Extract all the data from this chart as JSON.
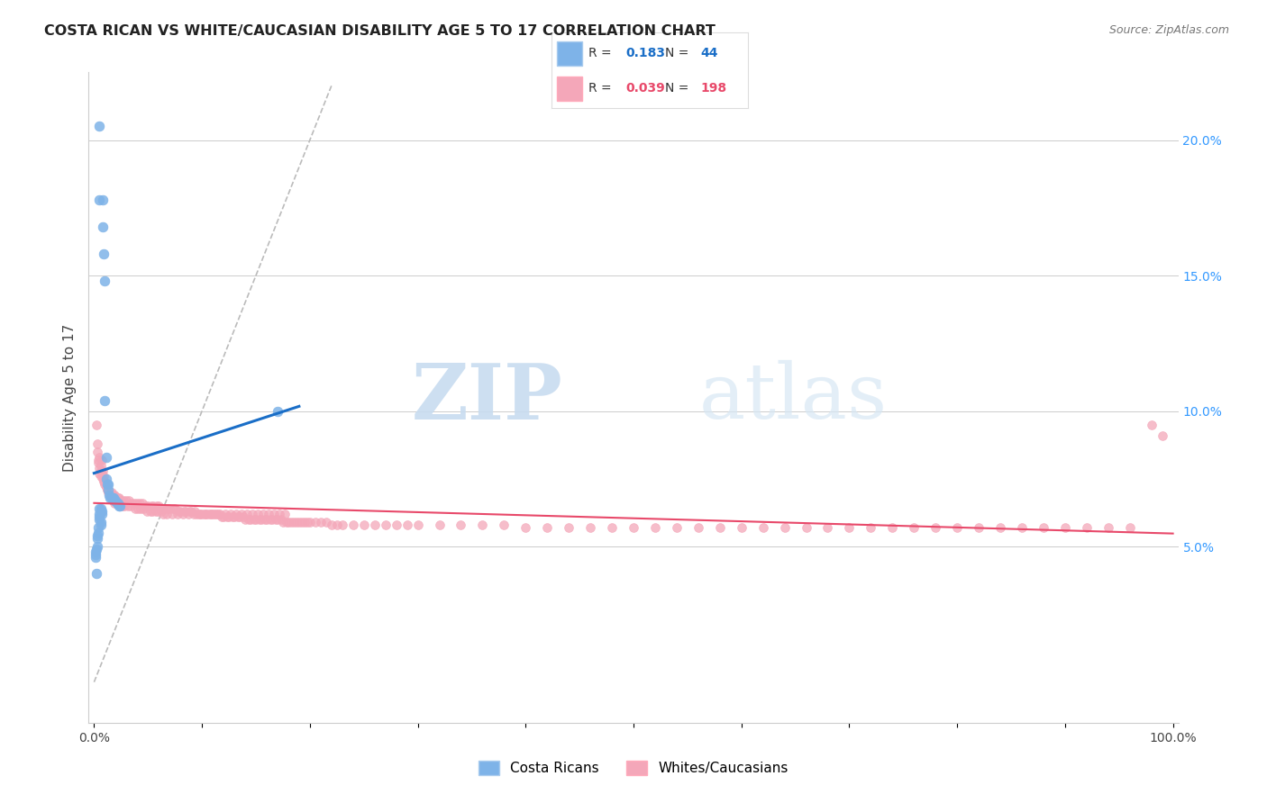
{
  "title": "COSTA RICAN VS WHITE/CAUCASIAN DISABILITY AGE 5 TO 17 CORRELATION CHART",
  "source": "Source: ZipAtlas.com",
  "ylabel": "Disability Age 5 to 17",
  "watermark_zip": "ZIP",
  "watermark_atlas": "atlas",
  "legend_blue_R": "0.183",
  "legend_blue_N": "44",
  "legend_pink_R": "0.039",
  "legend_pink_N": "198",
  "legend_label1": "Costa Ricans",
  "legend_label2": "Whites/Caucasians",
  "xlim": [
    0.0,
    1.0
  ],
  "ylim": [
    0.0,
    0.22
  ],
  "yticks_right": [
    0.05,
    0.1,
    0.15,
    0.2
  ],
  "yticklabels_right": [
    "5.0%",
    "10.0%",
    "15.0%",
    "20.0%"
  ],
  "blue_color": "#7EB3E8",
  "pink_color": "#F4A7B9",
  "blue_line_color": "#1A6EC7",
  "pink_line_color": "#E8496A",
  "diagonal_color": "#BBBBBB",
  "background": "#FFFFFF",
  "blue_points_x": [
    0.005,
    0.005,
    0.008,
    0.008,
    0.009,
    0.01,
    0.01,
    0.011,
    0.011,
    0.012,
    0.013,
    0.013,
    0.014,
    0.015,
    0.016,
    0.017,
    0.018,
    0.019,
    0.02,
    0.021,
    0.022,
    0.023,
    0.024,
    0.005,
    0.006,
    0.006,
    0.007,
    0.007,
    0.005,
    0.005,
    0.005,
    0.006,
    0.006,
    0.004,
    0.004,
    0.003,
    0.003,
    0.003,
    0.002,
    0.001,
    0.001,
    0.001,
    0.002,
    0.17
  ],
  "blue_points_y": [
    0.205,
    0.178,
    0.178,
    0.168,
    0.158,
    0.148,
    0.104,
    0.083,
    0.075,
    0.073,
    0.073,
    0.071,
    0.069,
    0.068,
    0.068,
    0.068,
    0.068,
    0.067,
    0.067,
    0.066,
    0.066,
    0.065,
    0.065,
    0.064,
    0.064,
    0.063,
    0.063,
    0.062,
    0.062,
    0.061,
    0.06,
    0.059,
    0.058,
    0.057,
    0.055,
    0.054,
    0.053,
    0.05,
    0.049,
    0.048,
    0.047,
    0.046,
    0.04,
    0.1
  ],
  "pink_points_x": [
    0.002,
    0.003,
    0.004,
    0.005,
    0.005,
    0.006,
    0.006,
    0.007,
    0.008,
    0.009,
    0.01,
    0.011,
    0.012,
    0.013,
    0.014,
    0.015,
    0.016,
    0.017,
    0.018,
    0.019,
    0.02,
    0.022,
    0.023,
    0.025,
    0.027,
    0.03,
    0.032,
    0.035,
    0.037,
    0.04,
    0.042,
    0.045,
    0.048,
    0.05,
    0.053,
    0.055,
    0.058,
    0.06,
    0.063,
    0.065,
    0.068,
    0.07,
    0.073,
    0.075,
    0.078,
    0.08,
    0.083,
    0.085,
    0.088,
    0.09,
    0.093,
    0.095,
    0.098,
    0.1,
    0.103,
    0.105,
    0.108,
    0.11,
    0.113,
    0.115,
    0.118,
    0.12,
    0.123,
    0.125,
    0.128,
    0.13,
    0.133,
    0.135,
    0.138,
    0.14,
    0.143,
    0.145,
    0.148,
    0.15,
    0.153,
    0.155,
    0.158,
    0.16,
    0.163,
    0.165,
    0.168,
    0.17,
    0.173,
    0.175,
    0.178,
    0.18,
    0.183,
    0.185,
    0.188,
    0.19,
    0.193,
    0.195,
    0.198,
    0.2,
    0.205,
    0.21,
    0.215,
    0.22,
    0.225,
    0.23,
    0.24,
    0.25,
    0.26,
    0.27,
    0.28,
    0.29,
    0.3,
    0.32,
    0.34,
    0.36,
    0.38,
    0.4,
    0.42,
    0.44,
    0.46,
    0.48,
    0.5,
    0.52,
    0.54,
    0.56,
    0.58,
    0.6,
    0.62,
    0.64,
    0.66,
    0.68,
    0.7,
    0.72,
    0.74,
    0.76,
    0.78,
    0.8,
    0.82,
    0.84,
    0.86,
    0.88,
    0.9,
    0.92,
    0.94,
    0.96,
    0.98,
    0.99,
    0.003,
    0.004,
    0.005,
    0.006,
    0.007,
    0.008,
    0.009,
    0.01,
    0.011,
    0.012,
    0.013,
    0.015,
    0.016,
    0.017,
    0.018,
    0.019,
    0.021,
    0.024,
    0.026,
    0.028,
    0.031,
    0.034,
    0.038,
    0.041,
    0.043,
    0.046,
    0.049,
    0.052,
    0.054,
    0.057,
    0.059,
    0.062,
    0.064,
    0.067,
    0.072,
    0.077,
    0.082,
    0.087,
    0.092,
    0.097,
    0.102,
    0.107,
    0.112,
    0.117,
    0.122,
    0.127,
    0.132,
    0.137,
    0.142,
    0.147,
    0.152,
    0.157,
    0.162,
    0.167,
    0.172,
    0.177
  ],
  "pink_points_y": [
    0.095,
    0.088,
    0.082,
    0.083,
    0.077,
    0.078,
    0.076,
    0.077,
    0.075,
    0.074,
    0.073,
    0.072,
    0.071,
    0.071,
    0.07,
    0.07,
    0.07,
    0.069,
    0.069,
    0.069,
    0.068,
    0.068,
    0.068,
    0.067,
    0.067,
    0.067,
    0.067,
    0.066,
    0.066,
    0.066,
    0.066,
    0.066,
    0.065,
    0.065,
    0.065,
    0.065,
    0.065,
    0.065,
    0.064,
    0.064,
    0.064,
    0.064,
    0.064,
    0.064,
    0.063,
    0.063,
    0.063,
    0.063,
    0.063,
    0.063,
    0.063,
    0.062,
    0.062,
    0.062,
    0.062,
    0.062,
    0.062,
    0.062,
    0.062,
    0.062,
    0.061,
    0.061,
    0.061,
    0.061,
    0.061,
    0.061,
    0.061,
    0.061,
    0.061,
    0.06,
    0.06,
    0.06,
    0.06,
    0.06,
    0.06,
    0.06,
    0.06,
    0.06,
    0.06,
    0.06,
    0.06,
    0.06,
    0.06,
    0.059,
    0.059,
    0.059,
    0.059,
    0.059,
    0.059,
    0.059,
    0.059,
    0.059,
    0.059,
    0.059,
    0.059,
    0.059,
    0.059,
    0.058,
    0.058,
    0.058,
    0.058,
    0.058,
    0.058,
    0.058,
    0.058,
    0.058,
    0.058,
    0.058,
    0.058,
    0.058,
    0.058,
    0.057,
    0.057,
    0.057,
    0.057,
    0.057,
    0.057,
    0.057,
    0.057,
    0.057,
    0.057,
    0.057,
    0.057,
    0.057,
    0.057,
    0.057,
    0.057,
    0.057,
    0.057,
    0.057,
    0.057,
    0.057,
    0.057,
    0.057,
    0.057,
    0.057,
    0.057,
    0.057,
    0.057,
    0.057,
    0.095,
    0.091,
    0.085,
    0.081,
    0.079,
    0.08,
    0.082,
    0.078,
    0.076,
    0.074,
    0.072,
    0.071,
    0.07,
    0.069,
    0.068,
    0.067,
    0.067,
    0.066,
    0.066,
    0.065,
    0.065,
    0.065,
    0.065,
    0.065,
    0.064,
    0.064,
    0.064,
    0.064,
    0.063,
    0.063,
    0.063,
    0.063,
    0.063,
    0.063,
    0.062,
    0.062,
    0.062,
    0.062,
    0.062,
    0.062,
    0.062,
    0.062,
    0.062,
    0.062,
    0.062,
    0.062,
    0.062,
    0.062,
    0.062,
    0.062,
    0.062,
    0.062,
    0.062,
    0.062,
    0.062,
    0.062,
    0.062,
    0.062
  ]
}
